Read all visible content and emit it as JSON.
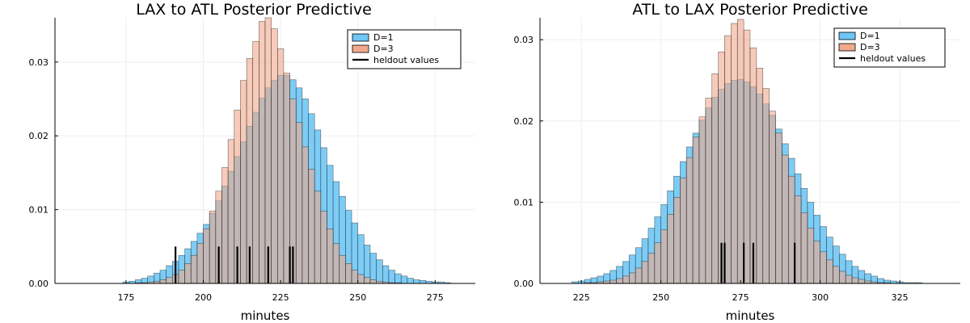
{
  "colors": {
    "d1": "#6ec6f5",
    "d3": "#f0a98c",
    "heldout": "#000000",
    "grid": "#eeeeee"
  },
  "chart_data": [
    {
      "type": "histogram",
      "title": "LAX to ATL Posterior Predictive",
      "xlabel": "minutes",
      "ylabel": "",
      "xlim": [
        152,
        288
      ],
      "ylim": [
        0,
        0.036
      ],
      "xticks": [
        175,
        200,
        225,
        250,
        275
      ],
      "yticks": [
        0.0,
        0.01,
        0.02,
        0.03
      ],
      "ytick_labels": [
        "0.00",
        "0.01",
        "0.02",
        "0.03"
      ],
      "bin_start": 174,
      "bin_width": 2,
      "legend": [
        "D=1",
        "D=3",
        "heldout values"
      ],
      "legend_position": "top-right",
      "grid": true,
      "series": [
        {
          "name": "D=1",
          "values": [
            0.0002,
            0.0003,
            0.0005,
            0.0007,
            0.001,
            0.0014,
            0.0018,
            0.0024,
            0.003,
            0.0038,
            0.0047,
            0.0057,
            0.0068,
            0.008,
            0.0095,
            0.0112,
            0.0132,
            0.0152,
            0.0172,
            0.0192,
            0.0213,
            0.0232,
            0.0251,
            0.0265,
            0.0275,
            0.0282,
            0.0282,
            0.0276,
            0.0265,
            0.025,
            0.023,
            0.0208,
            0.0184,
            0.016,
            0.0138,
            0.0118,
            0.0099,
            0.0082,
            0.0066,
            0.0052,
            0.0041,
            0.0032,
            0.0024,
            0.0018,
            0.0013,
            0.001,
            0.0007,
            0.0005,
            0.0004,
            0.0003,
            0.0002,
            0.0002,
            0.0001
          ]
        },
        {
          "name": "D=3",
          "values": [
            0.0,
            0.0,
            0.0001,
            0.0001,
            0.0002,
            0.0003,
            0.0005,
            0.0008,
            0.0012,
            0.0018,
            0.0027,
            0.0038,
            0.0054,
            0.0074,
            0.0098,
            0.0125,
            0.0157,
            0.0195,
            0.0235,
            0.0275,
            0.0305,
            0.0328,
            0.0355,
            0.036,
            0.0345,
            0.0318,
            0.0285,
            0.025,
            0.0218,
            0.0185,
            0.0155,
            0.0125,
            0.0098,
            0.0074,
            0.0054,
            0.0038,
            0.0027,
            0.0018,
            0.0012,
            0.0008,
            0.0005,
            0.0003,
            0.0002,
            0.0001,
            0.0001,
            0.0,
            0.0,
            0.0,
            0.0,
            0.0,
            0.0,
            0.0,
            0.0
          ]
        }
      ],
      "heldout_values": [
        191,
        205,
        211,
        215,
        221,
        228,
        229
      ],
      "heldout_height": 0.005
    },
    {
      "type": "histogram",
      "title": "ATL to LAX Posterior Predictive",
      "xlabel": "minutes",
      "ylabel": "",
      "xlim": [
        212,
        344
      ],
      "ylim": [
        0,
        0.0327
      ],
      "xticks": [
        225,
        250,
        275,
        300,
        325
      ],
      "yticks": [
        0.0,
        0.01,
        0.02,
        0.03
      ],
      "ytick_labels": [
        "0.00",
        "0.01",
        "0.02",
        "0.03"
      ],
      "bin_start": 222,
      "bin_width": 2,
      "legend": [
        "D=1",
        "D=3",
        "heldout values"
      ],
      "legend_position": "top-right",
      "grid": true,
      "series": [
        {
          "name": "D=1",
          "values": [
            0.0002,
            0.0003,
            0.0005,
            0.0007,
            0.0009,
            0.0012,
            0.0016,
            0.0021,
            0.0027,
            0.0035,
            0.0044,
            0.0055,
            0.0068,
            0.0082,
            0.0097,
            0.0114,
            0.0132,
            0.015,
            0.0168,
            0.0185,
            0.0201,
            0.0216,
            0.0229,
            0.0239,
            0.0246,
            0.025,
            0.0251,
            0.0248,
            0.0242,
            0.0233,
            0.0221,
            0.0207,
            0.019,
            0.0172,
            0.0154,
            0.0135,
            0.0117,
            0.01,
            0.0084,
            0.007,
            0.0057,
            0.0046,
            0.0036,
            0.0028,
            0.0021,
            0.0016,
            0.0012,
            0.0009,
            0.0006,
            0.0004,
            0.0003,
            0.0002,
            0.0001,
            0.0001,
            0.0001,
            0.0,
            0.0,
            0.0,
            0.0
          ]
        },
        {
          "name": "D=3",
          "values": [
            0.0,
            0.0,
            0.0001,
            0.0001,
            0.0002,
            0.0003,
            0.0004,
            0.0006,
            0.0009,
            0.0013,
            0.0019,
            0.0027,
            0.0037,
            0.005,
            0.0066,
            0.0085,
            0.0106,
            0.013,
            0.0155,
            0.018,
            0.0205,
            0.0228,
            0.0258,
            0.0285,
            0.0305,
            0.032,
            0.0325,
            0.0312,
            0.029,
            0.0265,
            0.024,
            0.0212,
            0.0185,
            0.0158,
            0.0132,
            0.0108,
            0.0087,
            0.0068,
            0.0052,
            0.0039,
            0.0029,
            0.0021,
            0.0015,
            0.001,
            0.0007,
            0.0005,
            0.0003,
            0.0002,
            0.0001,
            0.0001,
            0.0,
            0.0,
            0.0,
            0.0,
            0.0,
            0.0,
            0.0,
            0.0,
            0.0
          ]
        }
      ],
      "heldout_values": [
        269,
        270,
        276,
        279,
        292
      ],
      "heldout_height": 0.005
    }
  ]
}
